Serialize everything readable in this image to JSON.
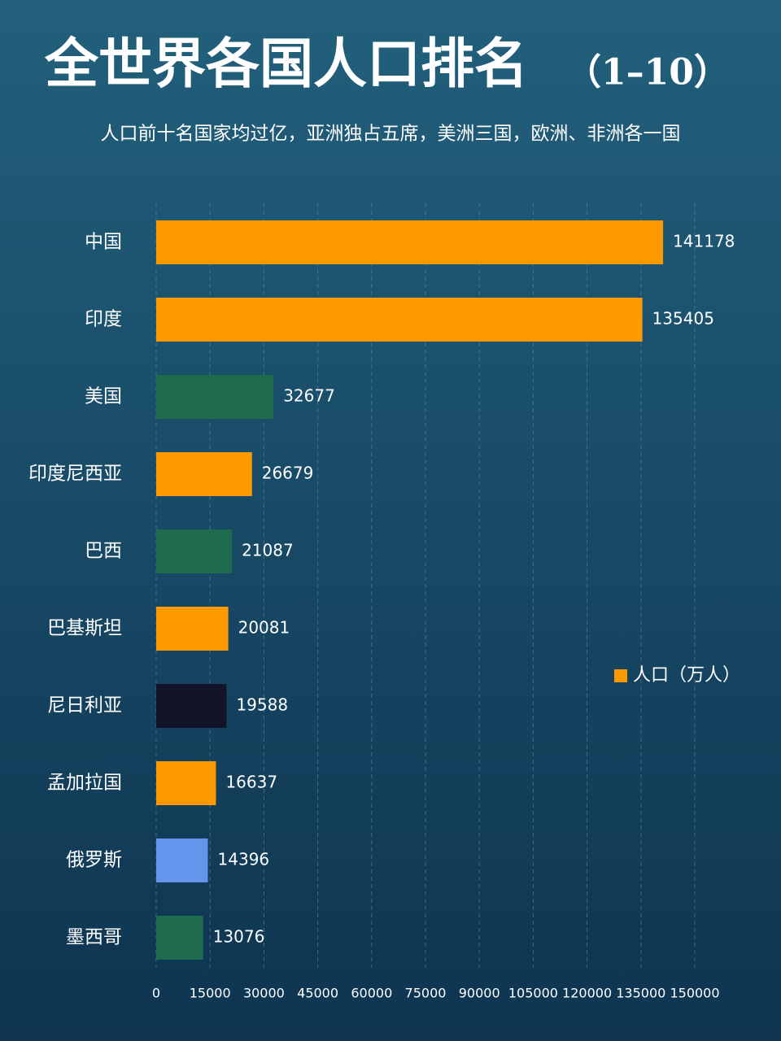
{
  "chart_data": {
    "type": "hbar",
    "title": "全世界各国人口排名",
    "title_range": "（1–10）",
    "subtitle": "人口前十名国家均过亿，亚洲独占五席，美洲三国，欧洲、非洲各一国",
    "categories": [
      "中国",
      "印度",
      "美国",
      "印度尼西亚",
      "巴西",
      "巴基斯坦",
      "尼日利亚",
      "孟加拉国",
      "俄罗斯",
      "墨西哥"
    ],
    "series": [
      {
        "name": "人口（万人）",
        "color": "#ff9900",
        "values": [
          141178,
          135405,
          32677,
          26679,
          21087,
          20081,
          19588,
          16637,
          14396,
          13076
        ],
        "colors": [
          "#ff9900",
          "#ff9900",
          "#1f6b4e",
          "#ff9900",
          "#1f6b4e",
          "#ff9900",
          "#12152a",
          "#ff9900",
          "#6495ed",
          "#1f6b4e"
        ]
      }
    ],
    "xlim": [
      0,
      150000
    ],
    "xticks": [
      0,
      15000,
      30000,
      45000,
      60000,
      75000,
      90000,
      105000,
      120000,
      135000,
      150000
    ],
    "grid": true,
    "legend": "right"
  }
}
